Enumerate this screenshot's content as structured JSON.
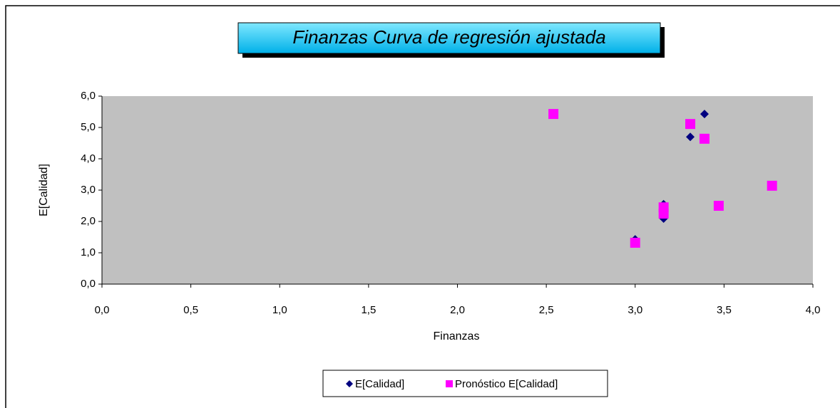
{
  "chart_data": {
    "type": "scatter",
    "title": "Finanzas Curva de regresión ajustada",
    "x_label": "Finanzas",
    "y_label": "E[Calidad]",
    "series": [
      {
        "name": "E[Calidad]",
        "color": "#000080",
        "marker": "diamond",
        "x": [
          3.31,
          3.39,
          3.16,
          3.16,
          3.0
        ],
        "values": [
          4.7,
          5.43,
          2.55,
          2.09,
          1.43
        ]
      },
      {
        "name": "Pronóstico  E[Calidad]",
        "color": "#ff00ff",
        "marker": "square",
        "x": [
          2.54,
          3.31,
          3.39,
          3.77,
          3.47,
          3.16,
          3.16,
          3.0
        ],
        "values": [
          5.43,
          5.11,
          4.64,
          3.14,
          2.5,
          2.45,
          2.25,
          1.32
        ]
      }
    ],
    "xlim": [
      0,
      4
    ],
    "ylim": [
      0,
      6
    ],
    "xticks": [
      {
        "value": 0,
        "label": "0,0"
      },
      {
        "value": 0.5,
        "label": "0,5"
      },
      {
        "value": 1,
        "label": "1,0"
      },
      {
        "value": 1.5,
        "label": "1,5"
      },
      {
        "value": 2,
        "label": "2,0"
      },
      {
        "value": 2.5,
        "label": "2,5"
      },
      {
        "value": 3,
        "label": "3,0"
      },
      {
        "value": 3.5,
        "label": "3,5"
      },
      {
        "value": 4,
        "label": "4,0"
      }
    ],
    "yticks": [
      {
        "value": 0,
        "label": "0,0"
      },
      {
        "value": 1,
        "label": "1,0"
      },
      {
        "value": 2,
        "label": "2,0"
      },
      {
        "value": 3,
        "label": "3,0"
      },
      {
        "value": 4,
        "label": "4,0"
      },
      {
        "value": 5,
        "label": "5,0"
      },
      {
        "value": 6,
        "label": "6,0"
      }
    ],
    "legend": "bottom"
  }
}
